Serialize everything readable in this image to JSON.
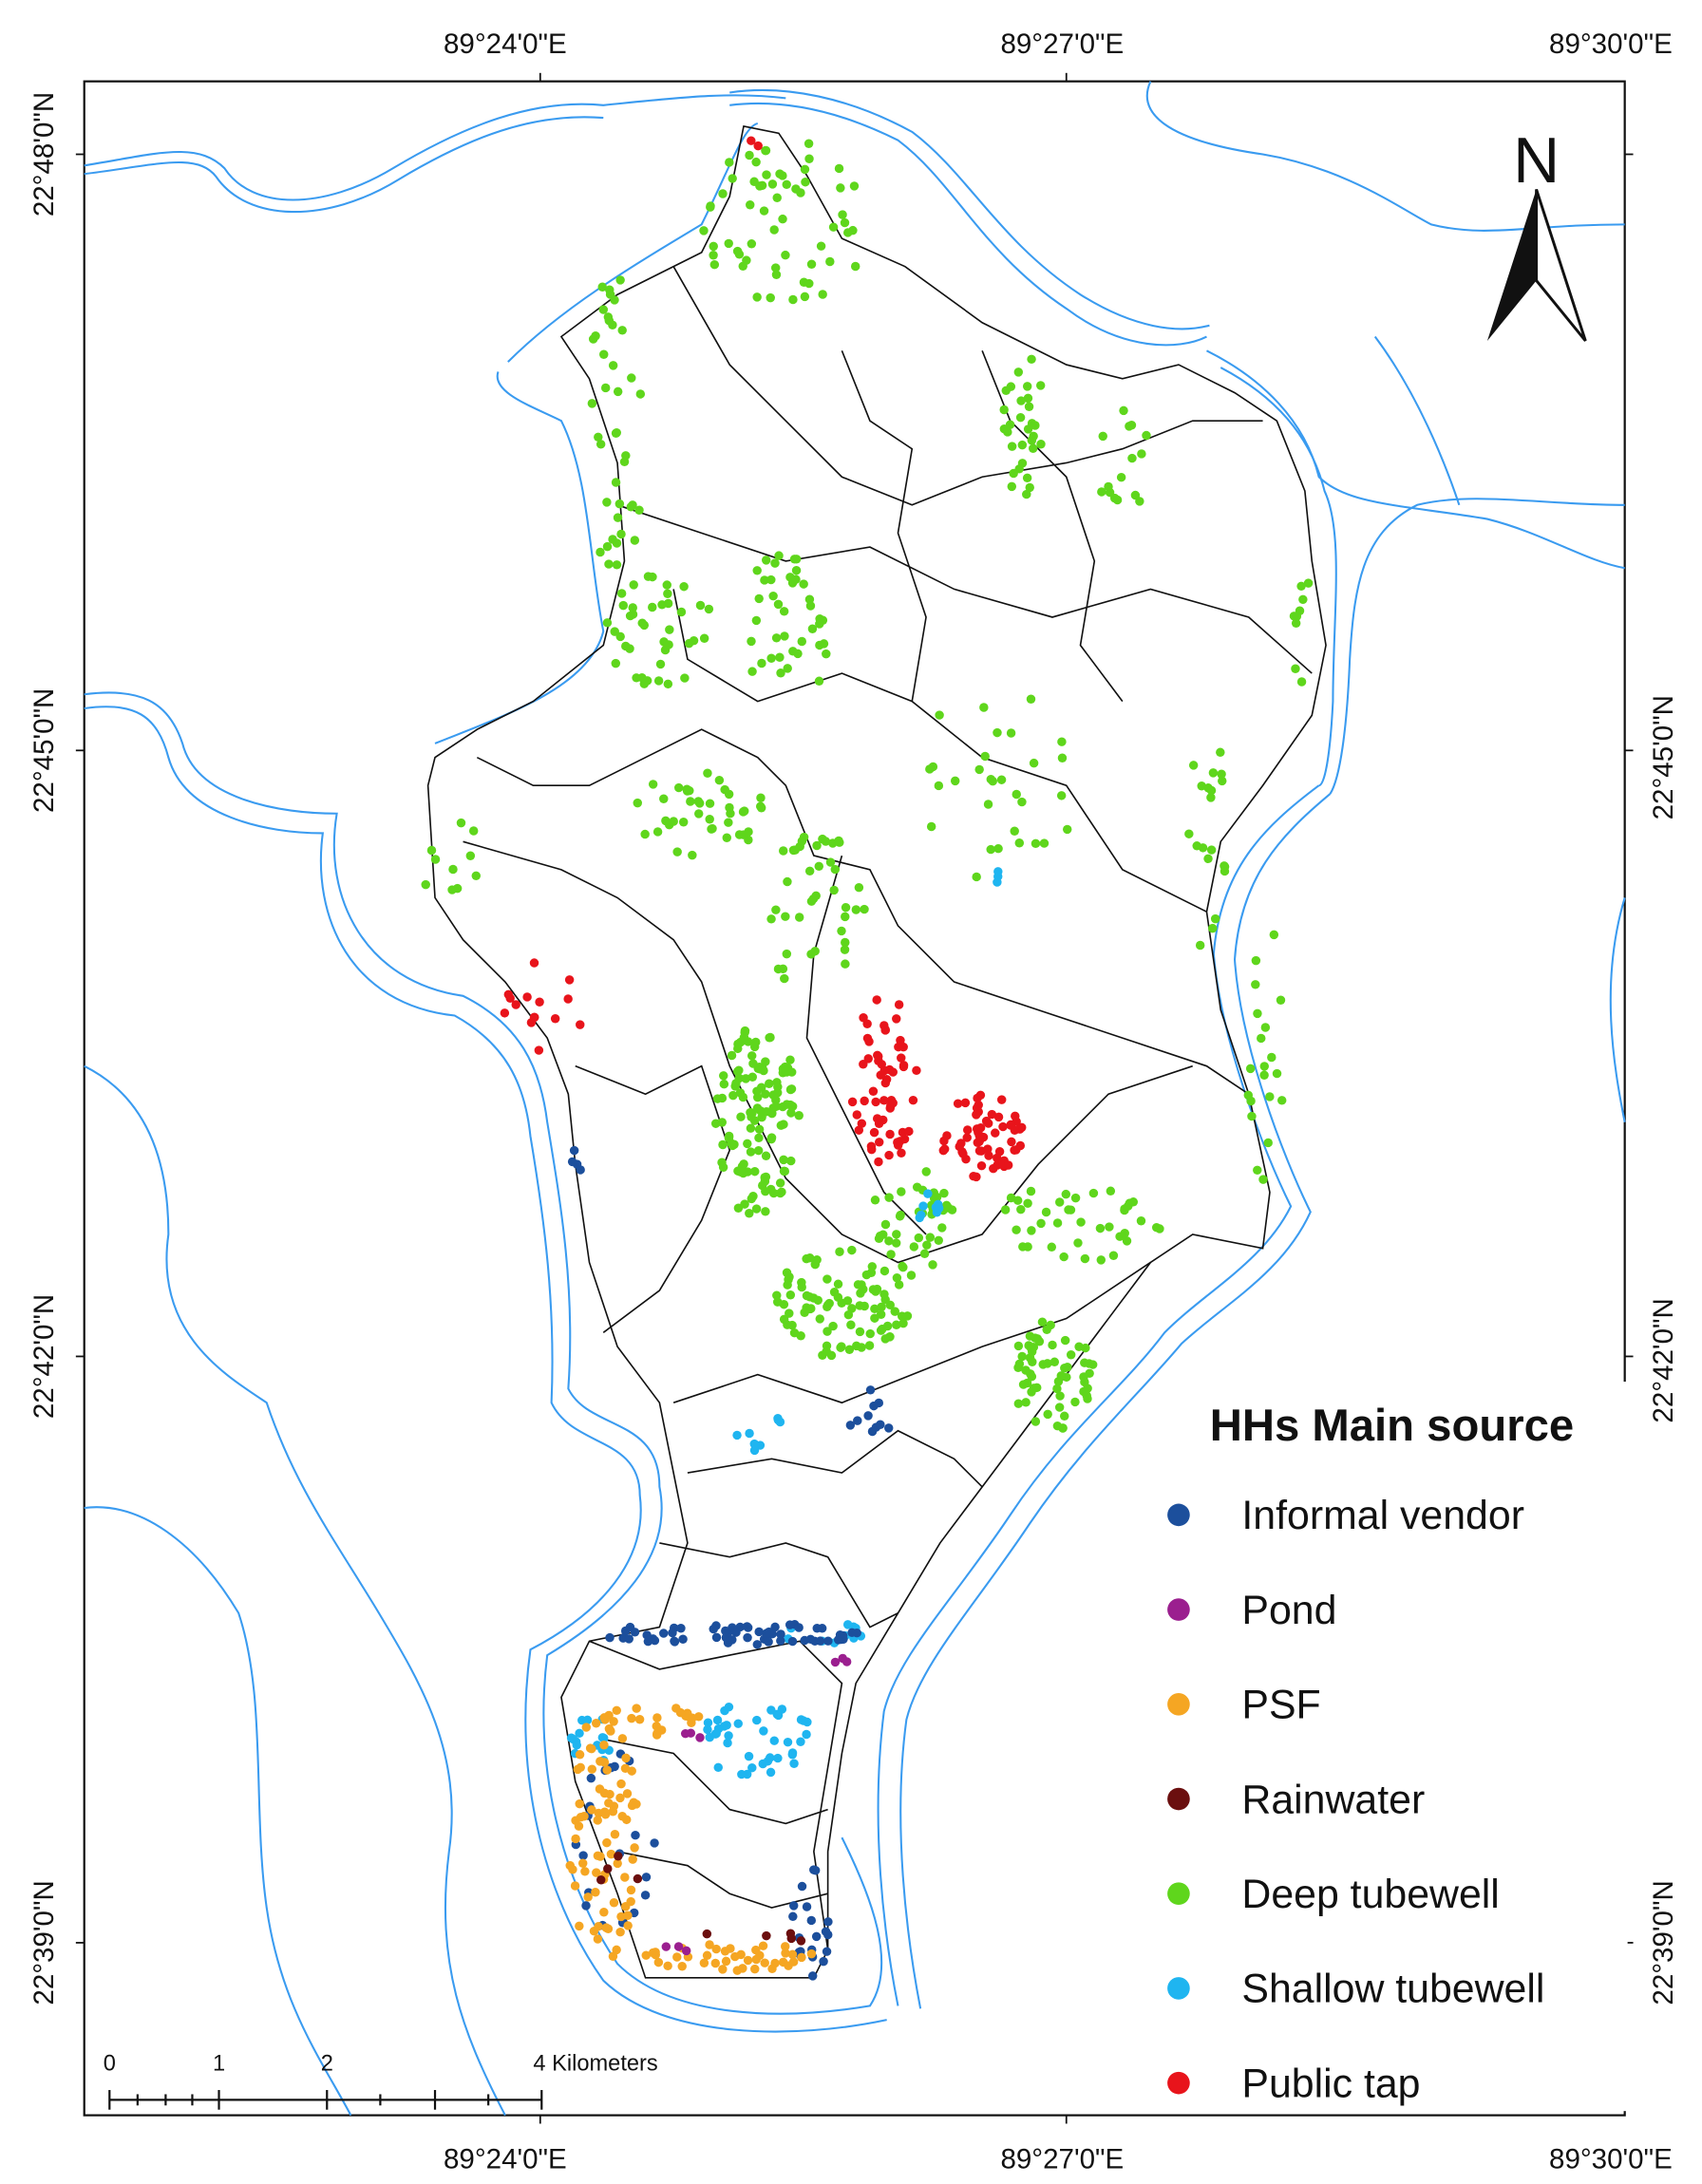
{
  "map": {
    "top_labels": [
      "89°24'0\"E",
      "89°27'0\"E",
      "89°30'0\"E"
    ],
    "bottom_labels": [
      "89°24'0\"E",
      "89°27'0\"E",
      "89°30'0\"E"
    ],
    "left_labels": [
      "22°48'0\"N",
      "22°45'0\"N",
      "22°42'0\"N",
      "22°39'0\"N"
    ],
    "right_labels": [
      "22°45'0\"N",
      "22°42'0\"N",
      "22°39'0\"N"
    ],
    "north": "N",
    "scale_bar": {
      "labels": [
        "0",
        "1",
        "2",
        "4 Kilometers"
      ]
    },
    "legend": {
      "title": "HHs Main source",
      "items": [
        {
          "label": "Informal vendor",
          "color": "#1c4f9c"
        },
        {
          "label": "Pond",
          "color": "#9b1f8f"
        },
        {
          "label": "PSF",
          "color": "#f5a623"
        },
        {
          "label": "Rainwater",
          "color": "#6b0f0f"
        },
        {
          "label": "Deep tubewell",
          "color": "#5fd61c"
        },
        {
          "label": "Shallow tubewell",
          "color": "#1fb5f0"
        },
        {
          "label": "Public tap",
          "color": "#e8141b"
        }
      ]
    }
  }
}
